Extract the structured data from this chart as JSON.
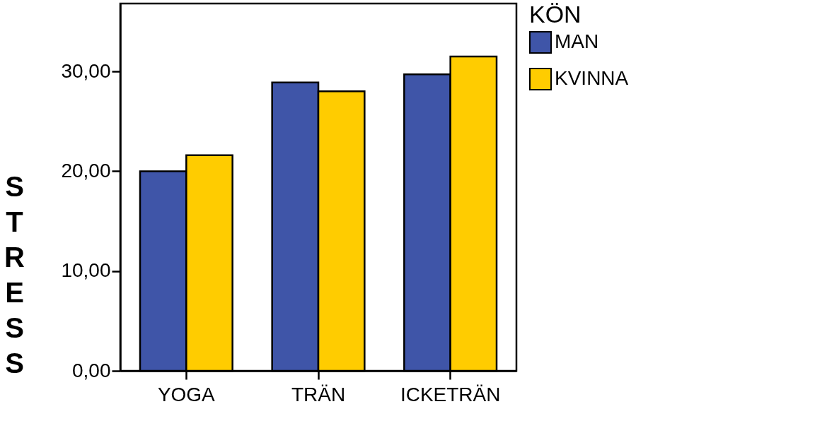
{
  "chart_data": {
    "type": "bar",
    "ylabel": "STRESS",
    "legend_title": "KÖN",
    "categories": [
      "YOGA",
      "TRÄN",
      "ICKETRÄN"
    ],
    "series": [
      {
        "name": "MAN",
        "color": "#3f55a8",
        "values": [
          20.0,
          28.9,
          29.7
        ]
      },
      {
        "name": "KVINNA",
        "color": "#ffcc00",
        "values": [
          21.6,
          28.0,
          31.5
        ]
      }
    ],
    "ylim": [
      0,
      36.8
    ],
    "yticks": [
      {
        "value": 0,
        "label": "0,00"
      },
      {
        "value": 10,
        "label": "10,00"
      },
      {
        "value": 20,
        "label": "20,00"
      },
      {
        "value": 30,
        "label": "30,00"
      }
    ],
    "grid": false,
    "legend": "right"
  }
}
